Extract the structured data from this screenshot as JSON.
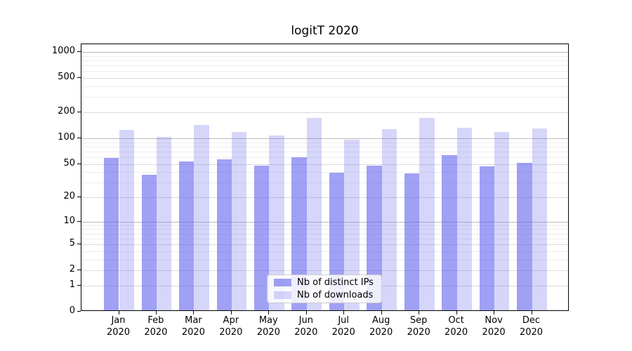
{
  "title": "logitT 2020",
  "chart_data": {
    "type": "bar",
    "title": "logitT 2020",
    "categories": [
      "Jan 2020",
      "Feb 2020",
      "Mar 2020",
      "Apr 2020",
      "May 2020",
      "Jun 2020",
      "Jul 2020",
      "Aug 2020",
      "Sep 2020",
      "Oct 2020",
      "Nov 2020",
      "Dec 2020"
    ],
    "x_tick_line1": [
      "Jan",
      "Feb",
      "Mar",
      "Apr",
      "May",
      "Jun",
      "Jul",
      "Aug",
      "Sep",
      "Oct",
      "Nov",
      "Dec"
    ],
    "x_tick_line2": [
      "2020",
      "2020",
      "2020",
      "2020",
      "2020",
      "2020",
      "2020",
      "2020",
      "2020",
      "2020",
      "2020",
      "2020"
    ],
    "series": [
      {
        "name": "Nb of distinct IPs",
        "color": "rgba(102,102,238,0.62)",
        "color_hex_on_white": "#a9a9f5",
        "values": [
          57,
          36,
          51,
          54,
          46,
          58,
          38,
          46,
          37,
          61,
          45,
          50
        ]
      },
      {
        "name": "Nb of downloads",
        "color": "rgba(102,102,238,0.27)",
        "color_hex_on_white": "#d9d9fa",
        "values": [
          120,
          100,
          137,
          113,
          104,
          165,
          92,
          123,
          165,
          127,
          115,
          126
        ]
      }
    ],
    "y_ticks": [
      0,
      1,
      2,
      5,
      10,
      20,
      50,
      100,
      200,
      500,
      1000
    ],
    "y_decade_lines": [
      10,
      100,
      1000
    ],
    "y_minor_lines": [
      3,
      4,
      6,
      7,
      8,
      9,
      30,
      40,
      60,
      70,
      80,
      90,
      300,
      400,
      600,
      700,
      800,
      900
    ],
    "scale": "log10(1+y)",
    "ylim": [
      0,
      1230
    ],
    "grid": true,
    "legend_position": "lower center",
    "xlabel": "",
    "ylabel": ""
  },
  "legend": {
    "items": [
      {
        "label": "Nb of distinct IPs",
        "color": "rgba(102,102,238,0.62)"
      },
      {
        "label": "Nb of downloads",
        "color": "rgba(102,102,238,0.27)"
      }
    ]
  }
}
